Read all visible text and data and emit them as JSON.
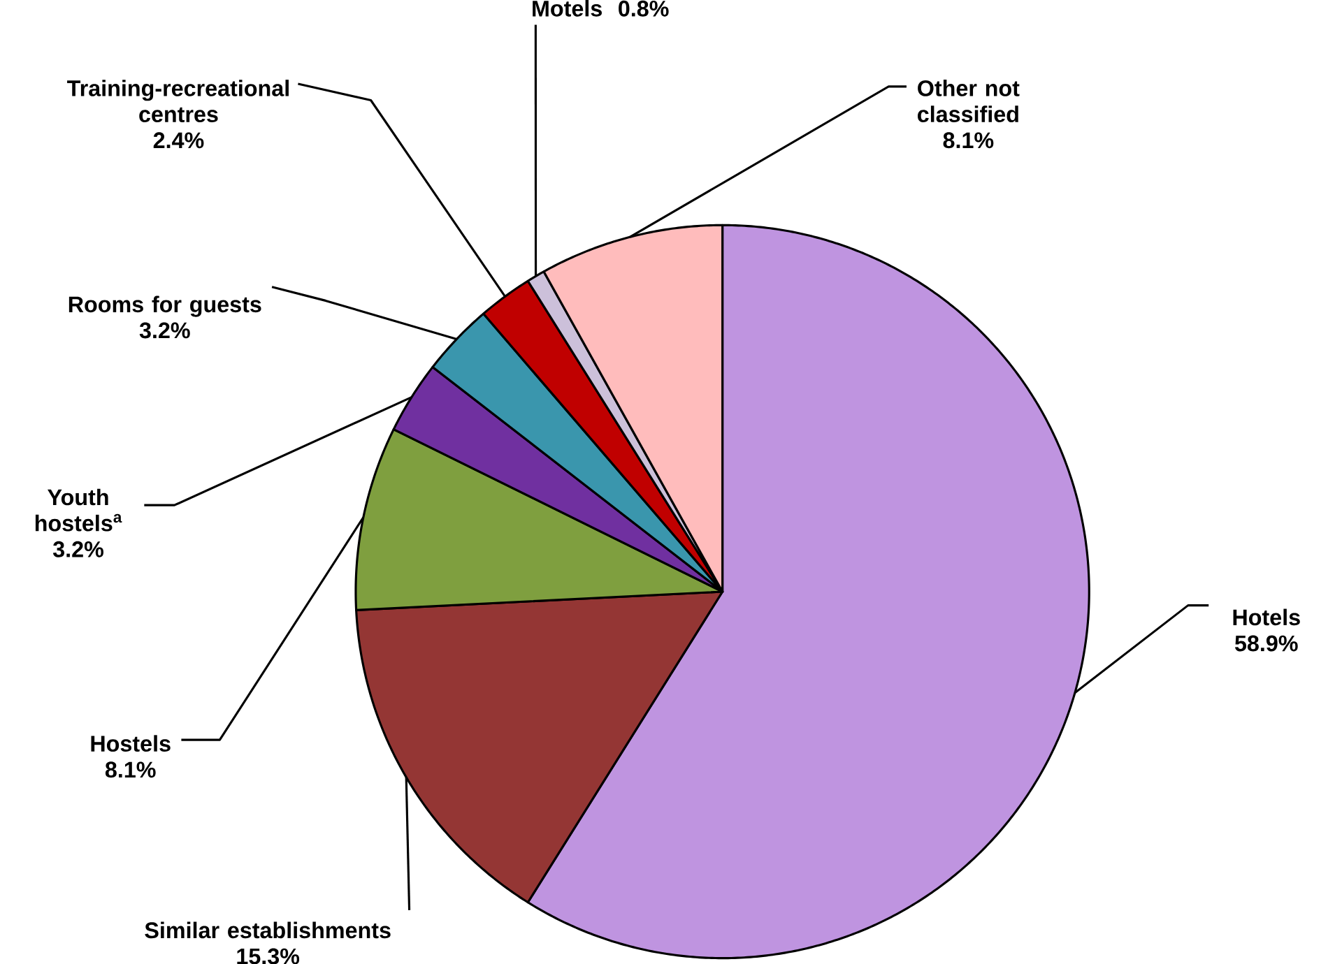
{
  "chart_data": {
    "type": "pie",
    "categories": [
      "Hotels",
      "Similar establishments",
      "Hostels",
      "Youth hostels$^{a}$",
      "Rooms for guests",
      "Training-recreational centres",
      "Motels",
      "Other not classified"
    ],
    "values": [
      58.9,
      15.3,
      8.1,
      3.2,
      3.2,
      2.4,
      0.8,
      8.1
    ],
    "value_labels": [
      "58.9%",
      "15.3%",
      "8.1%",
      "3.2%",
      "3.2%",
      "2.4%",
      "0.8%",
      "8.1%"
    ],
    "colors": [
      "#bf94e0",
      "#943634",
      "#7f9f3f",
      "#7030a0",
      "#3a96ad",
      "#c00000",
      "#ccc0da",
      "#ffbcbc"
    ]
  }
}
